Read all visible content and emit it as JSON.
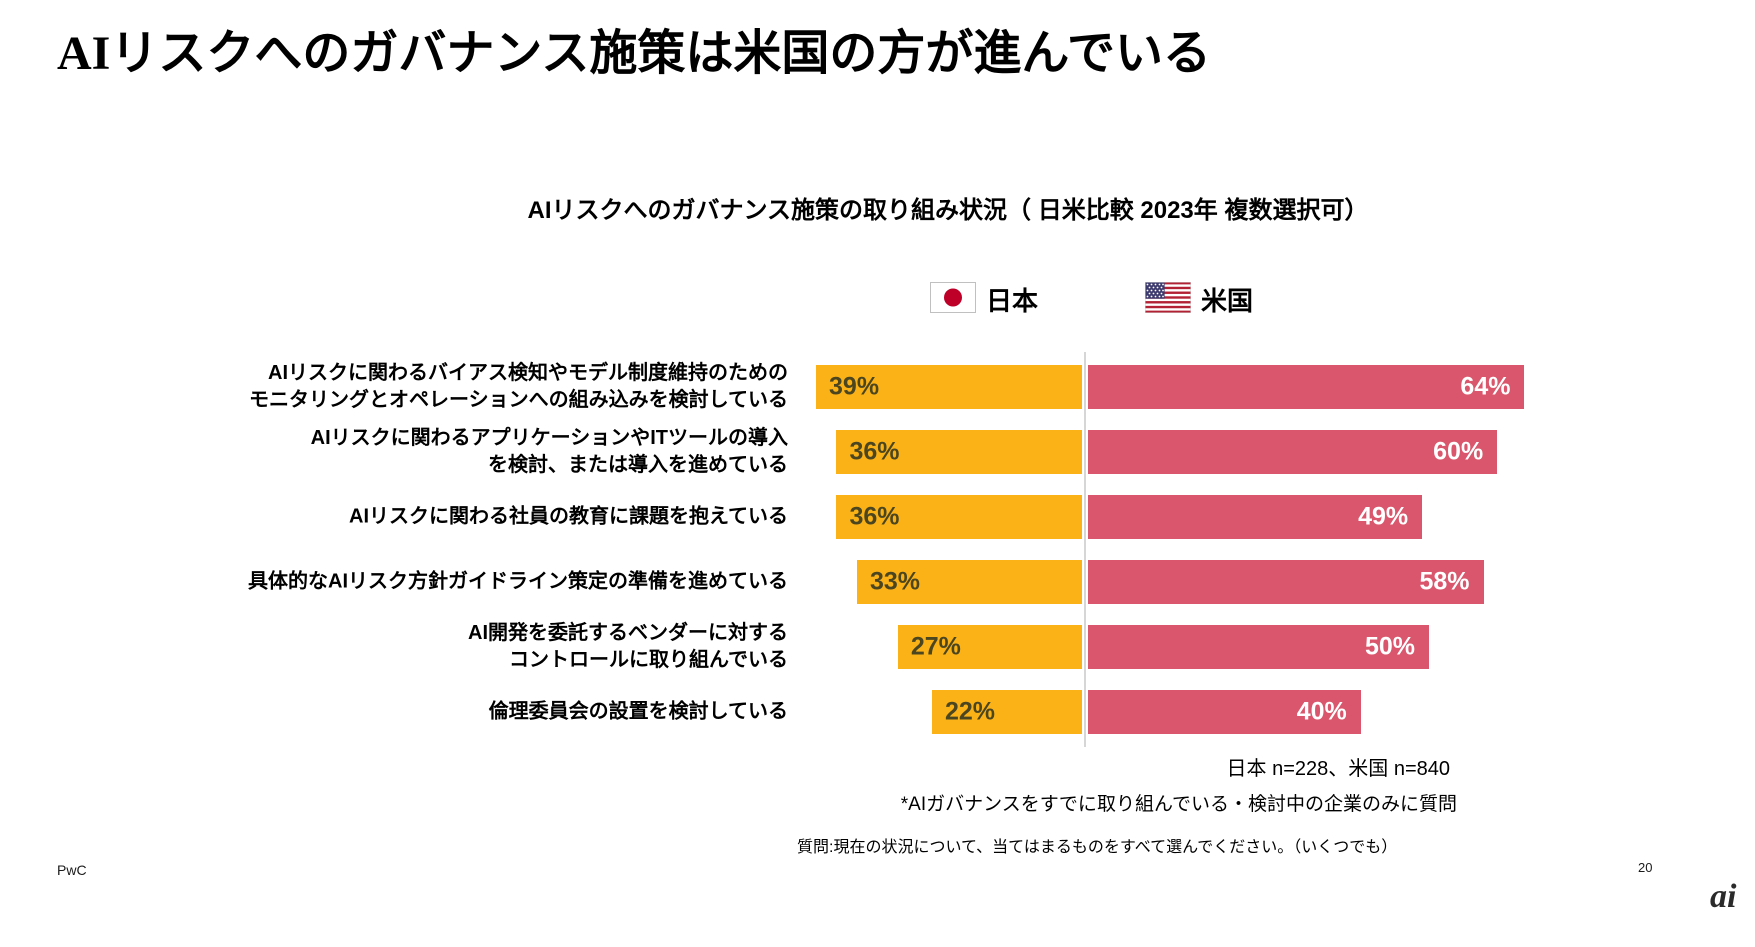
{
  "slide": {
    "title": "AIリスクへのガバナンス施策は米国の方が進んでいる"
  },
  "chart": {
    "title": "AIリスクへのガバナンス施策の取り組み状況（ 日米比較 2023年 複数選択可）",
    "legend": [
      {
        "label": "日本",
        "icon": "japan-flag-icon",
        "color": "#FAB217"
      },
      {
        "label": "米国",
        "icon": "us-flag-icon",
        "color": "#D9566C"
      }
    ]
  },
  "chart_data": {
    "type": "bar",
    "orientation": "horizontal-diverging",
    "title": "AIリスクへのガバナンス施策の取り組み状況（ 日米比較 2023年 複数選択可）",
    "categories": [
      "AIリスクに関わるバイアス検知やモデル制度維持のための\nモニタリングとオペレーションへの組み込みを検討している",
      "AIリスクに関わるアプリケーションやITツールの導入\nを検討、または導入を進めている",
      "AIリスクに関わる社員の教育に課題を抱えている",
      "具体的なAIリスク方針ガイドライン策定の準備を進めている",
      "AI開発を委託するベンダーに対する\nコントロールに取り組んでいる",
      "倫理委員会の設置を検討している"
    ],
    "series": [
      {
        "name": "日本",
        "side": "left",
        "color": "#FAB217",
        "label_color": "#4C4620",
        "values": [
          39,
          36,
          36,
          33,
          27,
          22
        ]
      },
      {
        "name": "米国",
        "side": "right",
        "color": "#D9566C",
        "label_color": "#FFFFFF",
        "values": [
          64,
          60,
          49,
          58,
          50,
          40
        ]
      }
    ],
    "value_suffix": "%",
    "xlim_per_side": [
      0,
      70
    ],
    "grid": false,
    "legend_position": "top-center"
  },
  "notes": {
    "sample": "日本 n=228、米国 n=840",
    "filter": "*AIガバナンスをすでに取り組んでいる・検討中の企業のみに質問",
    "question": "質問:現在の状況について、当てはまるものをすべて選んでください。（いくつでも）"
  },
  "footer": {
    "brand": "PwC",
    "page_number": "20",
    "watermark": "ai"
  }
}
